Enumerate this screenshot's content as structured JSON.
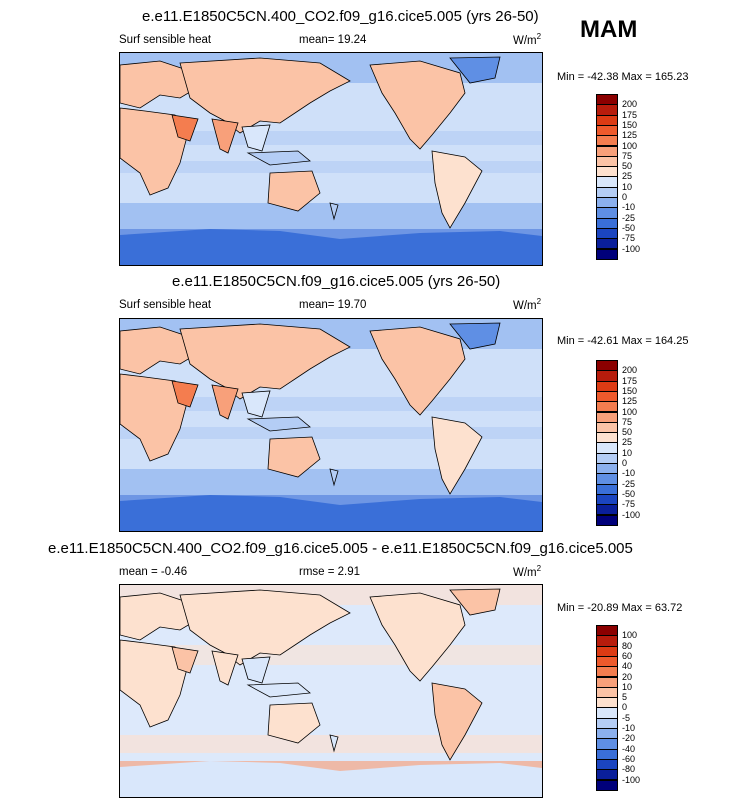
{
  "season": "MAM",
  "panels": [
    {
      "title": "e.e11.E1850C5CN.400_CO2.f09_g16.cice5.005 (yrs 26-50)",
      "left_label": "Surf sensible heat",
      "center_label": "mean=  19.24",
      "units": "W/m",
      "units_sup": "2",
      "minmax": "Min = -42.38 Max = 165.23",
      "levels": [
        "200",
        "175",
        "150",
        "125",
        "100",
        "75",
        "50",
        "25",
        "10",
        "0",
        "-10",
        "-25",
        "-50",
        "-75",
        "-100"
      ],
      "colors": [
        "#8b0000",
        "#b71c0c",
        "#dc3b14",
        "#ee5a2c",
        "#f47d4f",
        "#f8a07a",
        "#fbc3a6",
        "#fde1cf",
        "#d9e7fb",
        "#b4cdf5",
        "#8bb0ee",
        "#5f8fe4",
        "#3a6fd8",
        "#1b45c0",
        "#0a1f9a",
        "#00007a"
      ],
      "map_style": "full"
    },
    {
      "title": "e.e11.E1850C5CN.f09_g16.cice5.005 (yrs 26-50)",
      "left_label": "Surf sensible heat",
      "center_label": "mean=  19.70",
      "units": "W/m",
      "units_sup": "2",
      "minmax": "Min = -42.61 Max = 164.25",
      "levels": [
        "200",
        "175",
        "150",
        "125",
        "100",
        "75",
        "50",
        "25",
        "10",
        "0",
        "-10",
        "-25",
        "-50",
        "-75",
        "-100"
      ],
      "colors": [
        "#8b0000",
        "#b71c0c",
        "#dc3b14",
        "#ee5a2c",
        "#f47d4f",
        "#f8a07a",
        "#fbc3a6",
        "#fde1cf",
        "#d9e7fb",
        "#b4cdf5",
        "#8bb0ee",
        "#5f8fe4",
        "#3a6fd8",
        "#1b45c0",
        "#0a1f9a",
        "#00007a"
      ],
      "map_style": "full"
    },
    {
      "title": "e.e11.E1850C5CN.400_CO2.f09_g16.cice5.005 - e.e11.E1850C5CN.f09_g16.cice5.005",
      "left_label": "mean =  -0.46",
      "center_label": "rmse =   2.91",
      "units": "W/m",
      "units_sup": "2",
      "minmax": "Min = -20.89 Max = 63.72",
      "levels": [
        "100",
        "80",
        "60",
        "40",
        "20",
        "10",
        "5",
        "0",
        "-5",
        "-10",
        "-20",
        "-40",
        "-60",
        "-80",
        "-100"
      ],
      "colors": [
        "#8b0000",
        "#b71c0c",
        "#dc3b14",
        "#ee5a2c",
        "#f47d4f",
        "#f8a07a",
        "#fbc3a6",
        "#fde1cf",
        "#d9e7fb",
        "#b4cdf5",
        "#8bb0ee",
        "#5f8fe4",
        "#3a6fd8",
        "#1b45c0",
        "#0a1f9a",
        "#00007a"
      ],
      "map_style": "diff"
    }
  ]
}
